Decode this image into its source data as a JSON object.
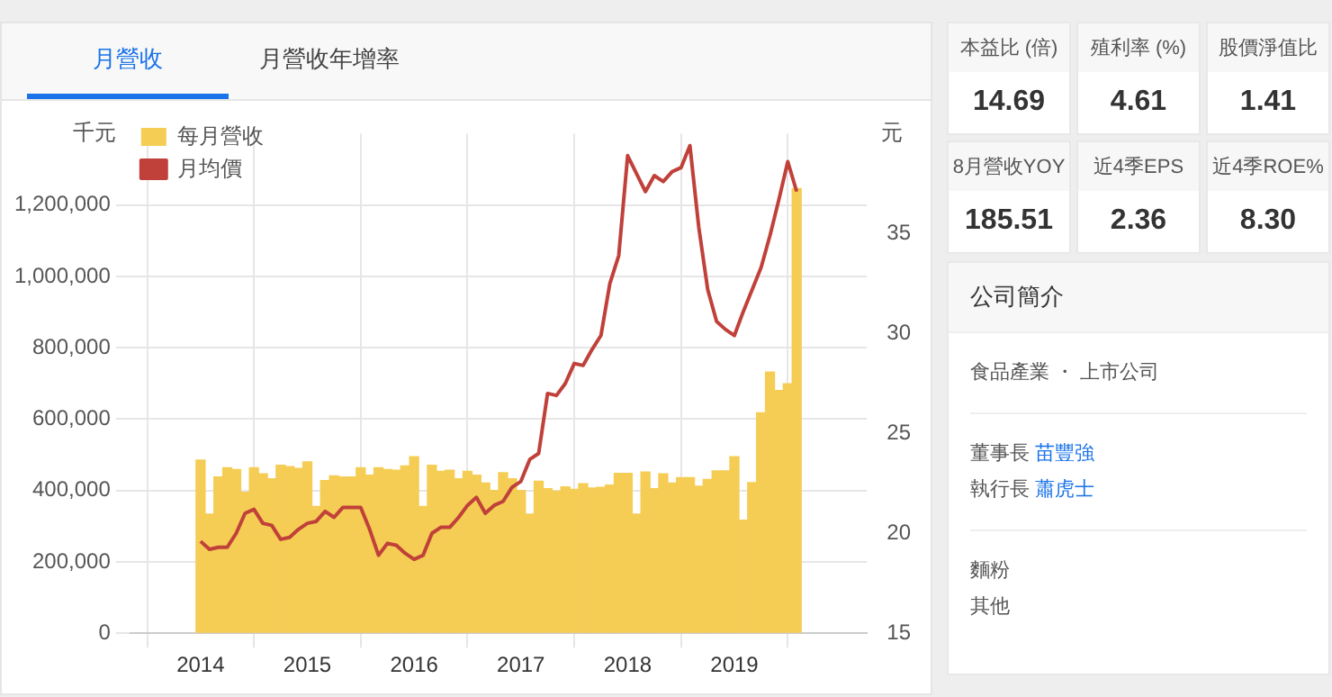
{
  "chart_data": [
    {
      "type": "bar",
      "ylabel": "千元",
      "y2label": "元",
      "x": [
        "2014-01",
        "2014-02",
        "2014-03",
        "2014-04",
        "2014-05",
        "2014-06",
        "2014-07",
        "2014-08",
        "2014-09",
        "2014-10",
        "2014-11",
        "2014-12",
        "2015-01",
        "2015-02",
        "2015-03",
        "2015-04",
        "2015-05",
        "2015-06",
        "2015-07",
        "2015-08",
        "2015-09",
        "2015-10",
        "2015-11",
        "2015-12",
        "2016-01",
        "2016-02",
        "2016-03",
        "2016-04",
        "2016-05",
        "2016-06",
        "2016-07",
        "2016-08",
        "2016-09",
        "2016-10",
        "2016-11",
        "2016-12",
        "2017-01",
        "2017-02",
        "2017-03",
        "2017-04",
        "2017-05",
        "2017-06",
        "2017-07",
        "2017-08",
        "2017-09",
        "2017-10",
        "2017-11",
        "2017-12",
        "2018-01",
        "2018-02",
        "2018-03",
        "2018-04",
        "2018-05",
        "2018-06",
        "2018-07",
        "2018-08",
        "2018-09",
        "2018-10",
        "2018-11",
        "2018-12",
        "2019-01",
        "2019-02",
        "2019-03",
        "2019-04",
        "2019-05",
        "2019-06",
        "2019-07",
        "2019-08"
      ],
      "series": [
        {
          "name": "每月營收",
          "type": "bar",
          "color": "#f5cd55",
          "values": [
            485000,
            334000,
            438000,
            464000,
            459000,
            395000,
            464000,
            447000,
            433000,
            471000,
            467000,
            462000,
            480000,
            355000,
            428000,
            441000,
            438000,
            438000,
            464000,
            443000,
            464000,
            459000,
            457000,
            469000,
            495000,
            355000,
            471000,
            454000,
            457000,
            433000,
            454000,
            443000,
            421000,
            400000,
            450000,
            433000,
            400000,
            334000,
            426000,
            405000,
            398000,
            410000,
            403000,
            419000,
            407000,
            409000,
            415000,
            448000,
            448000,
            334000,
            452000,
            405000,
            447000,
            421000,
            436000,
            436000,
            412000,
            431000,
            455000,
            455000,
            495000,
            317000,
            422000,
            618000,
            732000,
            680000,
            699000,
            1246000
          ]
        },
        {
          "name": "月均價",
          "type": "line",
          "axis": "y2",
          "color": "#c0413a",
          "values": [
            19.6,
            19.2,
            19.3,
            19.3,
            20.0,
            21.0,
            21.2,
            20.5,
            20.4,
            19.7,
            19.8,
            20.2,
            20.5,
            20.6,
            21.1,
            20.8,
            21.3,
            21.3,
            21.3,
            20.2,
            18.9,
            19.5,
            19.4,
            19.0,
            18.7,
            18.9,
            20.0,
            20.3,
            20.3,
            20.8,
            21.4,
            21.8,
            21.0,
            21.4,
            21.6,
            22.3,
            22.6,
            23.7,
            24.0,
            27.0,
            26.9,
            27.5,
            28.5,
            28.4,
            29.2,
            29.9,
            32.5,
            33.9,
            38.9,
            38.0,
            37.1,
            37.9,
            37.6,
            38.1,
            38.3,
            39.4,
            35.3,
            32.2,
            30.6,
            30.2,
            29.9,
            31.1,
            32.2,
            33.3,
            34.9,
            36.7,
            38.6,
            37.1
          ]
        }
      ],
      "xlim": [
        "2013-12",
        "2019-09"
      ],
      "xticks": [
        "2014",
        "2015",
        "2016",
        "2017",
        "2018",
        "2019"
      ],
      "ylim": [
        0,
        1400000
      ],
      "yticks": [
        0,
        {
          "value": 200000,
          "label": "200,000"
        },
        {
          "value": 400000,
          "label": "400,000"
        },
        {
          "value": 600000,
          "label": "600,000"
        },
        {
          "value": 800000,
          "label": "800,000"
        },
        {
          "value": 1000000,
          "label": "1,000,000"
        },
        {
          "value": 1200000,
          "label": "1,200,000"
        }
      ],
      "y2lim": [
        15,
        40
      ],
      "y2ticks": [
        15,
        20,
        25,
        30,
        35
      ],
      "grid": true,
      "legend": "top left",
      "marker": "none",
      "line_style": "solid"
    },
    {
      "type": "other",
      "annotations": [
        "月營收",
        "月營收年增率"
      ]
    },
    {
      "type": "other",
      "categories": [
        "本益比 (倍)",
        "殖利率 (%)",
        "股價淨值比",
        "8月營收YOY",
        "近4季EPS",
        "近4季ROE%"
      ],
      "value_labels": [
        "14.69",
        "4.61",
        "1.41",
        "185.51",
        "2.36",
        "8.30"
      ]
    },
    {
      "type": "other",
      "title": "公司簡介",
      "annotations": [
        "食品產業 ・ 上市公司",
        "董事長 苗豐強",
        "執行長 蕭虎士",
        "麵粉",
        "其他"
      ]
    }
  ]
}
